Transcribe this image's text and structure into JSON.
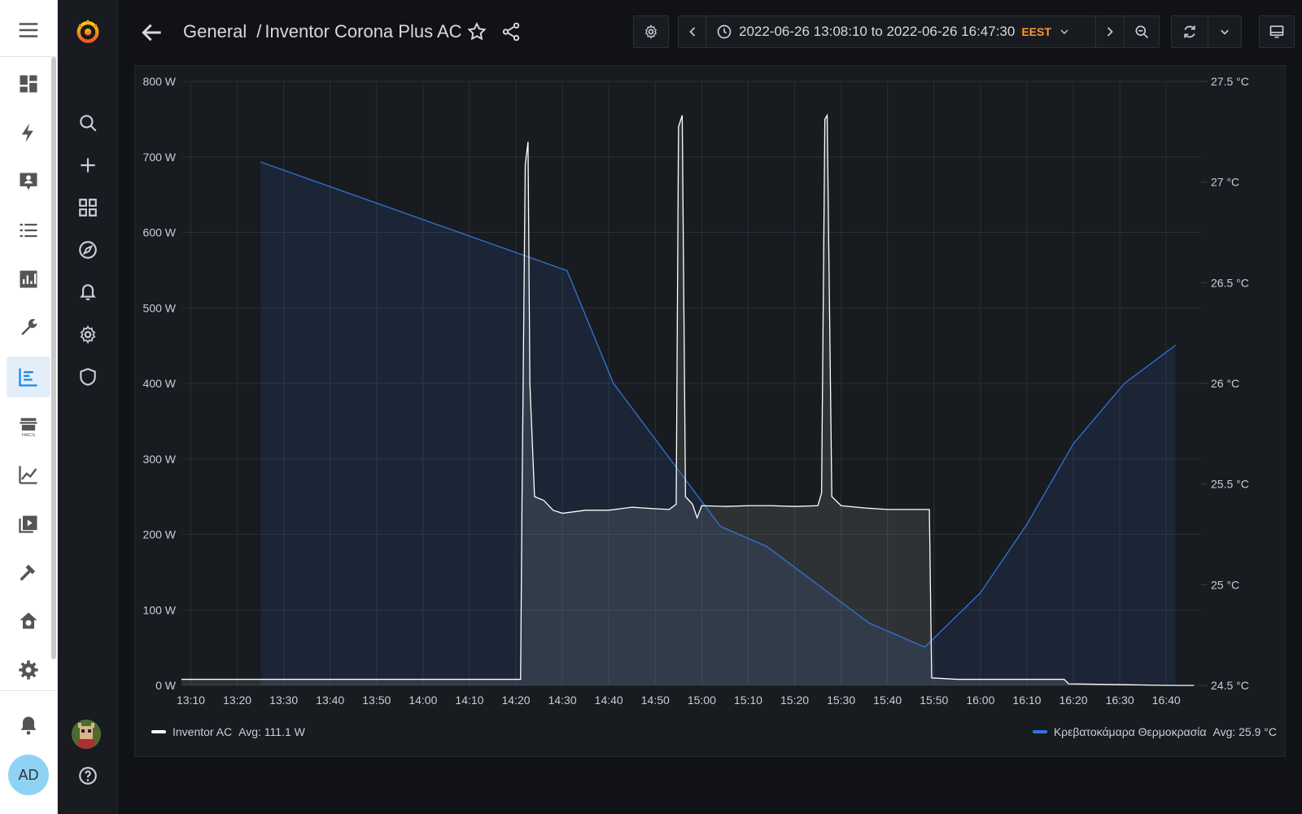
{
  "dashboard": {
    "folder": "General",
    "separator": "/",
    "title": "Inventor Corona Plus AC"
  },
  "time_range": {
    "text": "2022-06-26 13:08:10 to 2022-06-26 16:47:30",
    "timezone": "EEST"
  },
  "ha_sidebar": {
    "user_initials": "AD",
    "icons": [
      "overview-icon",
      "energy-icon",
      "logbook-icon",
      "history-list-icon",
      "stats-icon",
      "tools-icon",
      "grafana-icon",
      "hacs-icon",
      "history-icon",
      "media-icon",
      "developer-tools-icon",
      "home-settings-icon",
      "settings-icon"
    ],
    "notifications_icon": "bell-icon"
  },
  "chart_data": {
    "type": "line",
    "x_ticks": [
      "13:10",
      "13:20",
      "13:30",
      "13:40",
      "13:50",
      "14:00",
      "14:10",
      "14:20",
      "14:30",
      "14:40",
      "14:50",
      "15:00",
      "15:10",
      "15:20",
      "15:30",
      "15:40",
      "15:50",
      "16:00",
      "16:10",
      "16:20",
      "16:30",
      "16:40"
    ],
    "y_left_ticks": [
      "0 W",
      "100 W",
      "200 W",
      "300 W",
      "400 W",
      "500 W",
      "600 W",
      "700 W",
      "800 W"
    ],
    "y_right_ticks": [
      "24.5 °C",
      "25 °C",
      "25.5 °C",
      "26 °C",
      "26.5 °C",
      "27 °C",
      "27.5 °C"
    ],
    "y_left_range": [
      0,
      800
    ],
    "y_right_range": [
      24.5,
      27.5
    ],
    "x_range": [
      "13:08:10",
      "16:47:30"
    ],
    "series": [
      {
        "name": "Inventor AC",
        "avg_label": "Avg: 111.1 W",
        "color": "#ffffff",
        "axis": "left",
        "points": [
          [
            "13:08",
            8
          ],
          [
            "13:30",
            8
          ],
          [
            "14:00",
            8
          ],
          [
            "14:20",
            8
          ],
          [
            "14:21",
            8
          ],
          [
            "14:21.3",
            240
          ],
          [
            "14:22",
            690
          ],
          [
            "14:22.6",
            720
          ],
          [
            "14:23",
            400
          ],
          [
            "14:24",
            250
          ],
          [
            "14:26",
            245
          ],
          [
            "14:28",
            232
          ],
          [
            "14:30",
            228
          ],
          [
            "14:35",
            232
          ],
          [
            "14:40",
            232
          ],
          [
            "14:45",
            236
          ],
          [
            "14:50",
            234
          ],
          [
            "14:53",
            233
          ],
          [
            "14:54.5",
            240
          ],
          [
            "14:55",
            740
          ],
          [
            "14:55.8",
            755
          ],
          [
            "14:56.5",
            250
          ],
          [
            "14:58",
            240
          ],
          [
            "14:59",
            222
          ],
          [
            "15:00",
            238
          ],
          [
            "15:05",
            237
          ],
          [
            "15:10",
            238
          ],
          [
            "15:15",
            238
          ],
          [
            "15:20",
            237
          ],
          [
            "15:25",
            238
          ],
          [
            "15:25.8",
            255
          ],
          [
            "15:26.5",
            750
          ],
          [
            "15:27",
            755
          ],
          [
            "15:28",
            250
          ],
          [
            "15:30",
            238
          ],
          [
            "15:35",
            235
          ],
          [
            "15:40",
            233
          ],
          [
            "15:45",
            233
          ],
          [
            "15:49",
            233
          ],
          [
            "15:49.5",
            10
          ],
          [
            "15:55",
            8
          ],
          [
            "16:00",
            8
          ],
          [
            "16:10",
            8
          ],
          [
            "16:18",
            8
          ],
          [
            "16:19",
            2
          ],
          [
            "16:30",
            1
          ],
          [
            "16:40",
            0
          ],
          [
            "16:46",
            0
          ]
        ]
      },
      {
        "name": "Κρεβατοκάμαρα Θερμοκρασία",
        "avg_label": "Avg: 25.9 °C",
        "color": "#3274d9",
        "axis": "right",
        "points": [
          [
            "13:25",
            27.1
          ],
          [
            "14:31",
            26.56
          ],
          [
            "14:41",
            26.0
          ],
          [
            "14:53",
            25.63
          ],
          [
            "15:04",
            25.29
          ],
          [
            "15:14",
            25.19
          ],
          [
            "15:36",
            24.81
          ],
          [
            "15:48",
            24.69
          ],
          [
            "16:00",
            24.96
          ],
          [
            "16:10",
            25.3
          ],
          [
            "16:20",
            25.7
          ],
          [
            "16:31",
            26.0
          ],
          [
            "16:42",
            26.19
          ]
        ]
      }
    ]
  }
}
